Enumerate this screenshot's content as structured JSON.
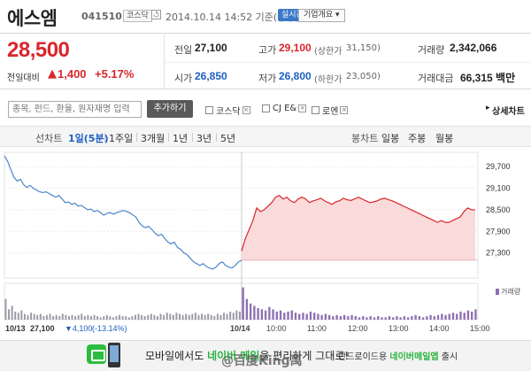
{
  "header": {
    "stock_name": "에스엠",
    "stock_code": "041510",
    "market_badge": "코스닥",
    "timestamp": "2014.10.14 14:52 기준(장중)",
    "realtime_label": "실시간",
    "company_label": "기업개요 ▾"
  },
  "quote": {
    "price": "28,500",
    "change_label": "전일대비",
    "change_arrow": "▲",
    "change_amount": "1,400",
    "change_rate": "+5.17%",
    "prev_close_label": "전일",
    "prev_close": "27,100",
    "high_label": "고가",
    "high": "29,100",
    "upper_limit_label": "(상한가",
    "upper_limit": "31,150)",
    "volume_label": "거래량",
    "volume": "2,342,066",
    "open_label": "시가",
    "open": "26,850",
    "low_label": "저가",
    "low": "26,800",
    "lower_limit_label": "(하한가",
    "lower_limit": "23,050)",
    "turnover_label": "거래대금",
    "turnover": "66,315 백만"
  },
  "search": {
    "placeholder": "종목, 펀드, 환율, 원자재명 입력",
    "add_label": "추가하기",
    "compare_items": [
      "코스닥",
      "CJ E&",
      "로엔"
    ],
    "detail_label": "상세차트"
  },
  "periods": {
    "line_chart_label": "선차트",
    "items": [
      "1일(5분)",
      "1주일",
      "3개월",
      "1년",
      "3년",
      "5년"
    ],
    "selected": "1일(5분)",
    "candle_label": "봉차트",
    "candle_items": [
      "일봉",
      "주봉",
      "월봉"
    ]
  },
  "chart_data": {
    "type": "line",
    "y_ticks": [
      "29,700",
      "29,100",
      "28,500",
      "27,900",
      "27,300"
    ],
    "ylim": [
      26600,
      30100
    ],
    "volume_label": "거래량",
    "prev_day": {
      "date": "10/13",
      "close": "27,100",
      "change": "▼4,100",
      "change_rate": "(-13.14%)",
      "values": [
        30000,
        29850,
        29620,
        29400,
        29300,
        29350,
        29200,
        29120,
        29180,
        29100,
        29050,
        29000,
        28980,
        29000,
        28950,
        28900,
        28850,
        28900,
        28800,
        28700,
        28720,
        28650,
        28680,
        28600,
        28620,
        28560,
        28500,
        28520,
        28450,
        28480,
        28420,
        28350,
        28400,
        28420,
        28380,
        28420,
        28450,
        28480,
        28460,
        28420,
        28360,
        28300,
        28150,
        28050,
        28000,
        28040,
        27950,
        27850,
        27780,
        27820,
        27700,
        27600,
        27550,
        27600,
        27450,
        27400,
        27300,
        27250,
        27150,
        27050,
        27000,
        26950,
        27000,
        26920,
        26880,
        26850,
        26900,
        27000,
        27050,
        26950,
        26900,
        26880,
        26950,
        27050,
        27100
      ]
    },
    "today": {
      "date": "10/14",
      "x_labels": [
        "10/14",
        "10:00",
        "11:00",
        "12:00",
        "13:00",
        "14:00",
        "15:00"
      ],
      "values": [
        27350,
        27700,
        27950,
        28200,
        28550,
        28450,
        28500,
        28600,
        28700,
        28850,
        28900,
        28800,
        28850,
        28750,
        28700,
        28800,
        28850,
        28800,
        28700,
        28750,
        28780,
        28820,
        28750,
        28700,
        28650,
        28720,
        28750,
        28820,
        28780,
        28760,
        28800,
        28850,
        28800,
        28750,
        28700,
        28720,
        28750,
        28800,
        28820,
        28780,
        28750,
        28700,
        28650,
        28600,
        28550,
        28500,
        28450,
        28400,
        28350,
        28300,
        28250,
        28200,
        28150,
        28200,
        28150,
        28150,
        28200,
        28250,
        28300,
        28450,
        28550,
        28500,
        28500
      ]
    },
    "volume": {
      "prev_day": [
        18,
        9,
        12,
        7,
        6,
        8,
        5,
        4,
        6,
        5,
        4,
        5,
        3,
        4,
        5,
        3,
        4,
        3,
        5,
        4,
        3,
        4,
        3,
        4,
        5,
        3,
        4,
        3,
        4,
        3,
        2,
        3,
        4,
        3,
        2,
        3,
        4,
        3,
        3,
        2,
        3,
        4,
        5,
        4,
        3,
        4,
        5,
        4,
        3,
        5,
        4,
        6,
        5,
        4,
        6,
        5,
        4,
        5,
        4,
        5,
        6,
        4,
        5,
        4,
        5,
        4,
        3,
        5,
        4,
        6,
        5,
        7,
        6,
        8,
        7
      ],
      "today": [
        28,
        18,
        14,
        12,
        10,
        9,
        8,
        11,
        9,
        7,
        8,
        6,
        7,
        8,
        6,
        5,
        6,
        5,
        7,
        6,
        5,
        4,
        5,
        4,
        3,
        4,
        3,
        4,
        3,
        4,
        3,
        2,
        3,
        2,
        3,
        2,
        3,
        2,
        2,
        3,
        2,
        3,
        2,
        3,
        2,
        3,
        4,
        3,
        2,
        3,
        4,
        3,
        4,
        5,
        4,
        5,
        6,
        5,
        7,
        6,
        8,
        7,
        9
      ]
    }
  },
  "footer": {
    "text_1": "모바일에서도 ",
    "text_hl": "네이버 메일",
    "text_2": "을 편리하게 그대로!",
    "sub_1": "안드로이드용 ",
    "sub_hl": "네이버메일앱",
    "sub_2": " 출시",
    "watermark": "@百度King禹"
  },
  "colors": {
    "up": "#d9262c",
    "down": "#1e5fc0",
    "prev_line": "#4a87c8",
    "today_line": "#d9262c",
    "today_fill": "#fadada",
    "vol_prev": "#9a9aa6",
    "vol_today": "#8e6fb2"
  }
}
